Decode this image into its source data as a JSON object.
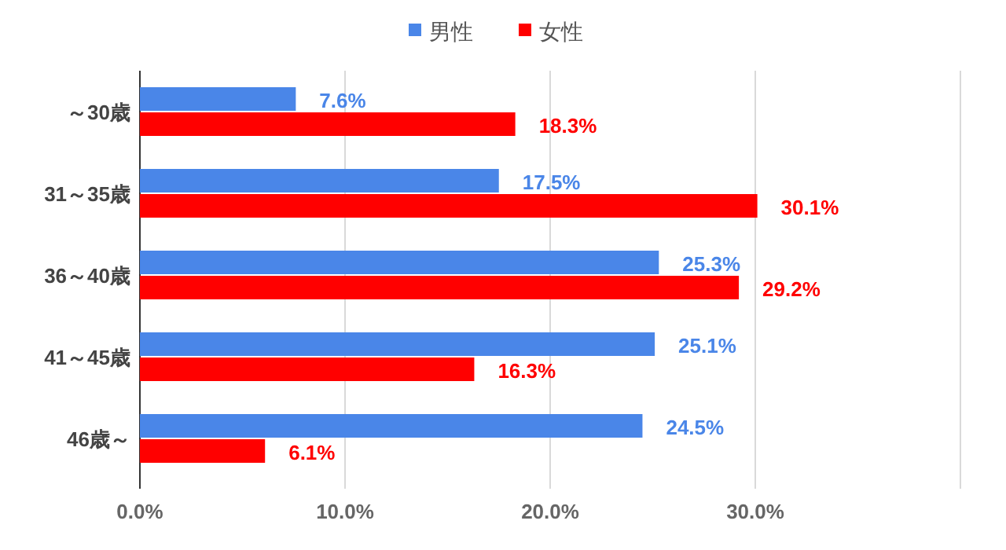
{
  "chart_data": {
    "type": "bar",
    "orientation": "horizontal",
    "categories": [
      "～30歳",
      "31～35歳",
      "36～40歳",
      "41～45歳",
      "46歳～"
    ],
    "series": [
      {
        "name": "男性",
        "color": "#4a86e8",
        "values": [
          7.6,
          17.5,
          25.3,
          25.1,
          24.5
        ],
        "value_labels": [
          "7.6%",
          "17.5%",
          "25.3%",
          "25.1%",
          "24.5%"
        ]
      },
      {
        "name": "女性",
        "color": "#ff0000",
        "values": [
          18.3,
          30.1,
          29.2,
          16.3,
          6.1
        ],
        "value_labels": [
          "18.3%",
          "30.1%",
          "29.2%",
          "16.3%",
          "6.1%"
        ]
      }
    ],
    "xlim": [
      0,
      40
    ],
    "xticks": [
      {
        "value": 0,
        "label": "0.0%"
      },
      {
        "value": 10,
        "label": "10.0%"
      },
      {
        "value": 20,
        "label": "20.0%"
      },
      {
        "value": 30,
        "label": "30.0%"
      },
      {
        "value": 40,
        "label": null
      }
    ],
    "grid": "x",
    "legend": "top"
  }
}
